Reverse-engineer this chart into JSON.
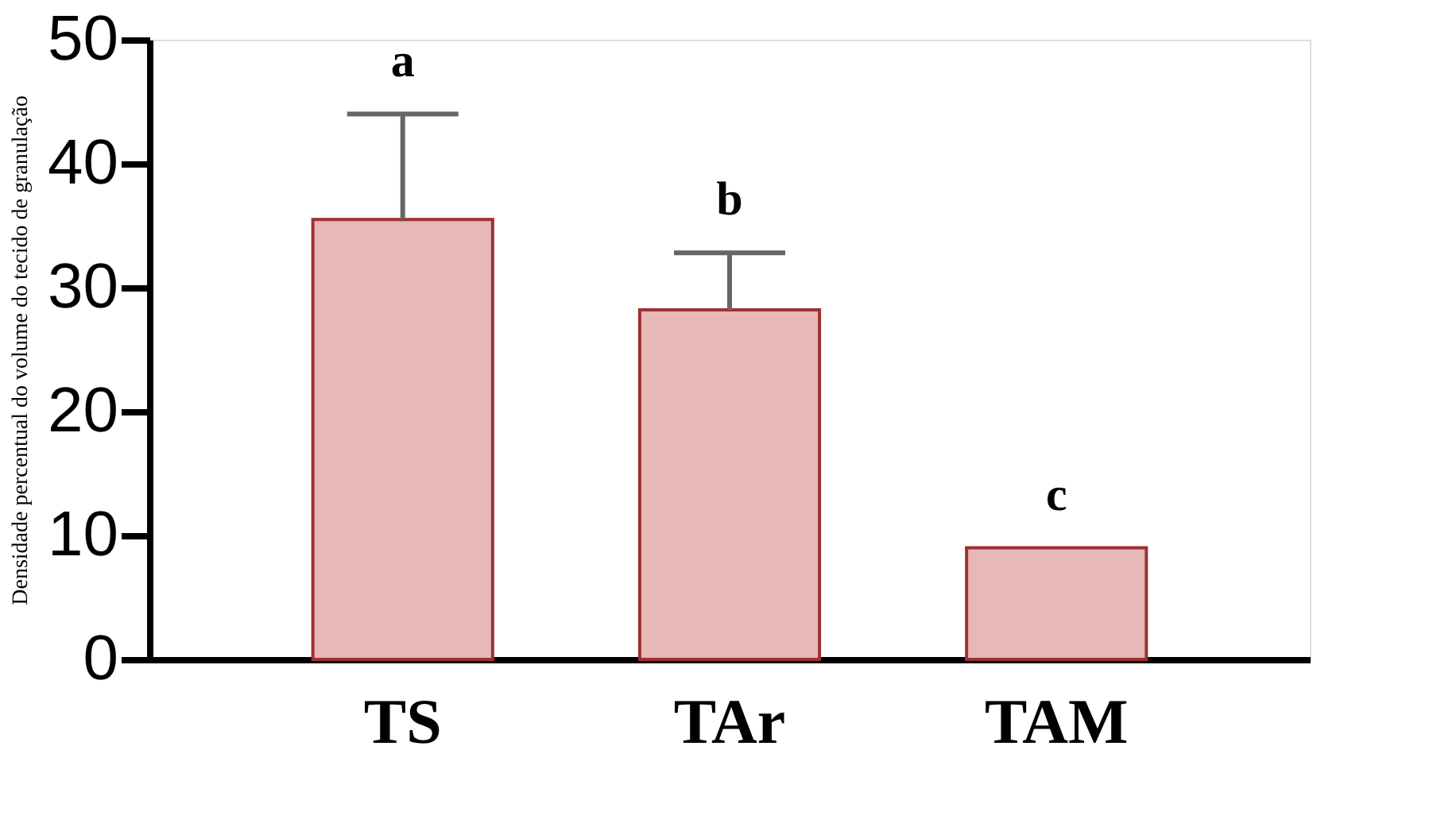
{
  "chart_data": {
    "type": "bar",
    "ylabel": "Densidade percentual do volume do tecido de granulação",
    "categories": [
      "TS",
      "TAr",
      "TAM"
    ],
    "values": [
      35.5,
      28.2,
      9.0
    ],
    "errors": [
      [
        35.5,
        44.0
      ],
      [
        28.2,
        32.8
      ],
      null
    ],
    "color": "#e6b8b8",
    "ylim": [
      0,
      50
    ],
    "yticks": [
      0,
      10,
      20,
      30,
      40,
      50
    ],
    "grid": false,
    "annotations": [
      "a",
      "b",
      "c"
    ]
  }
}
